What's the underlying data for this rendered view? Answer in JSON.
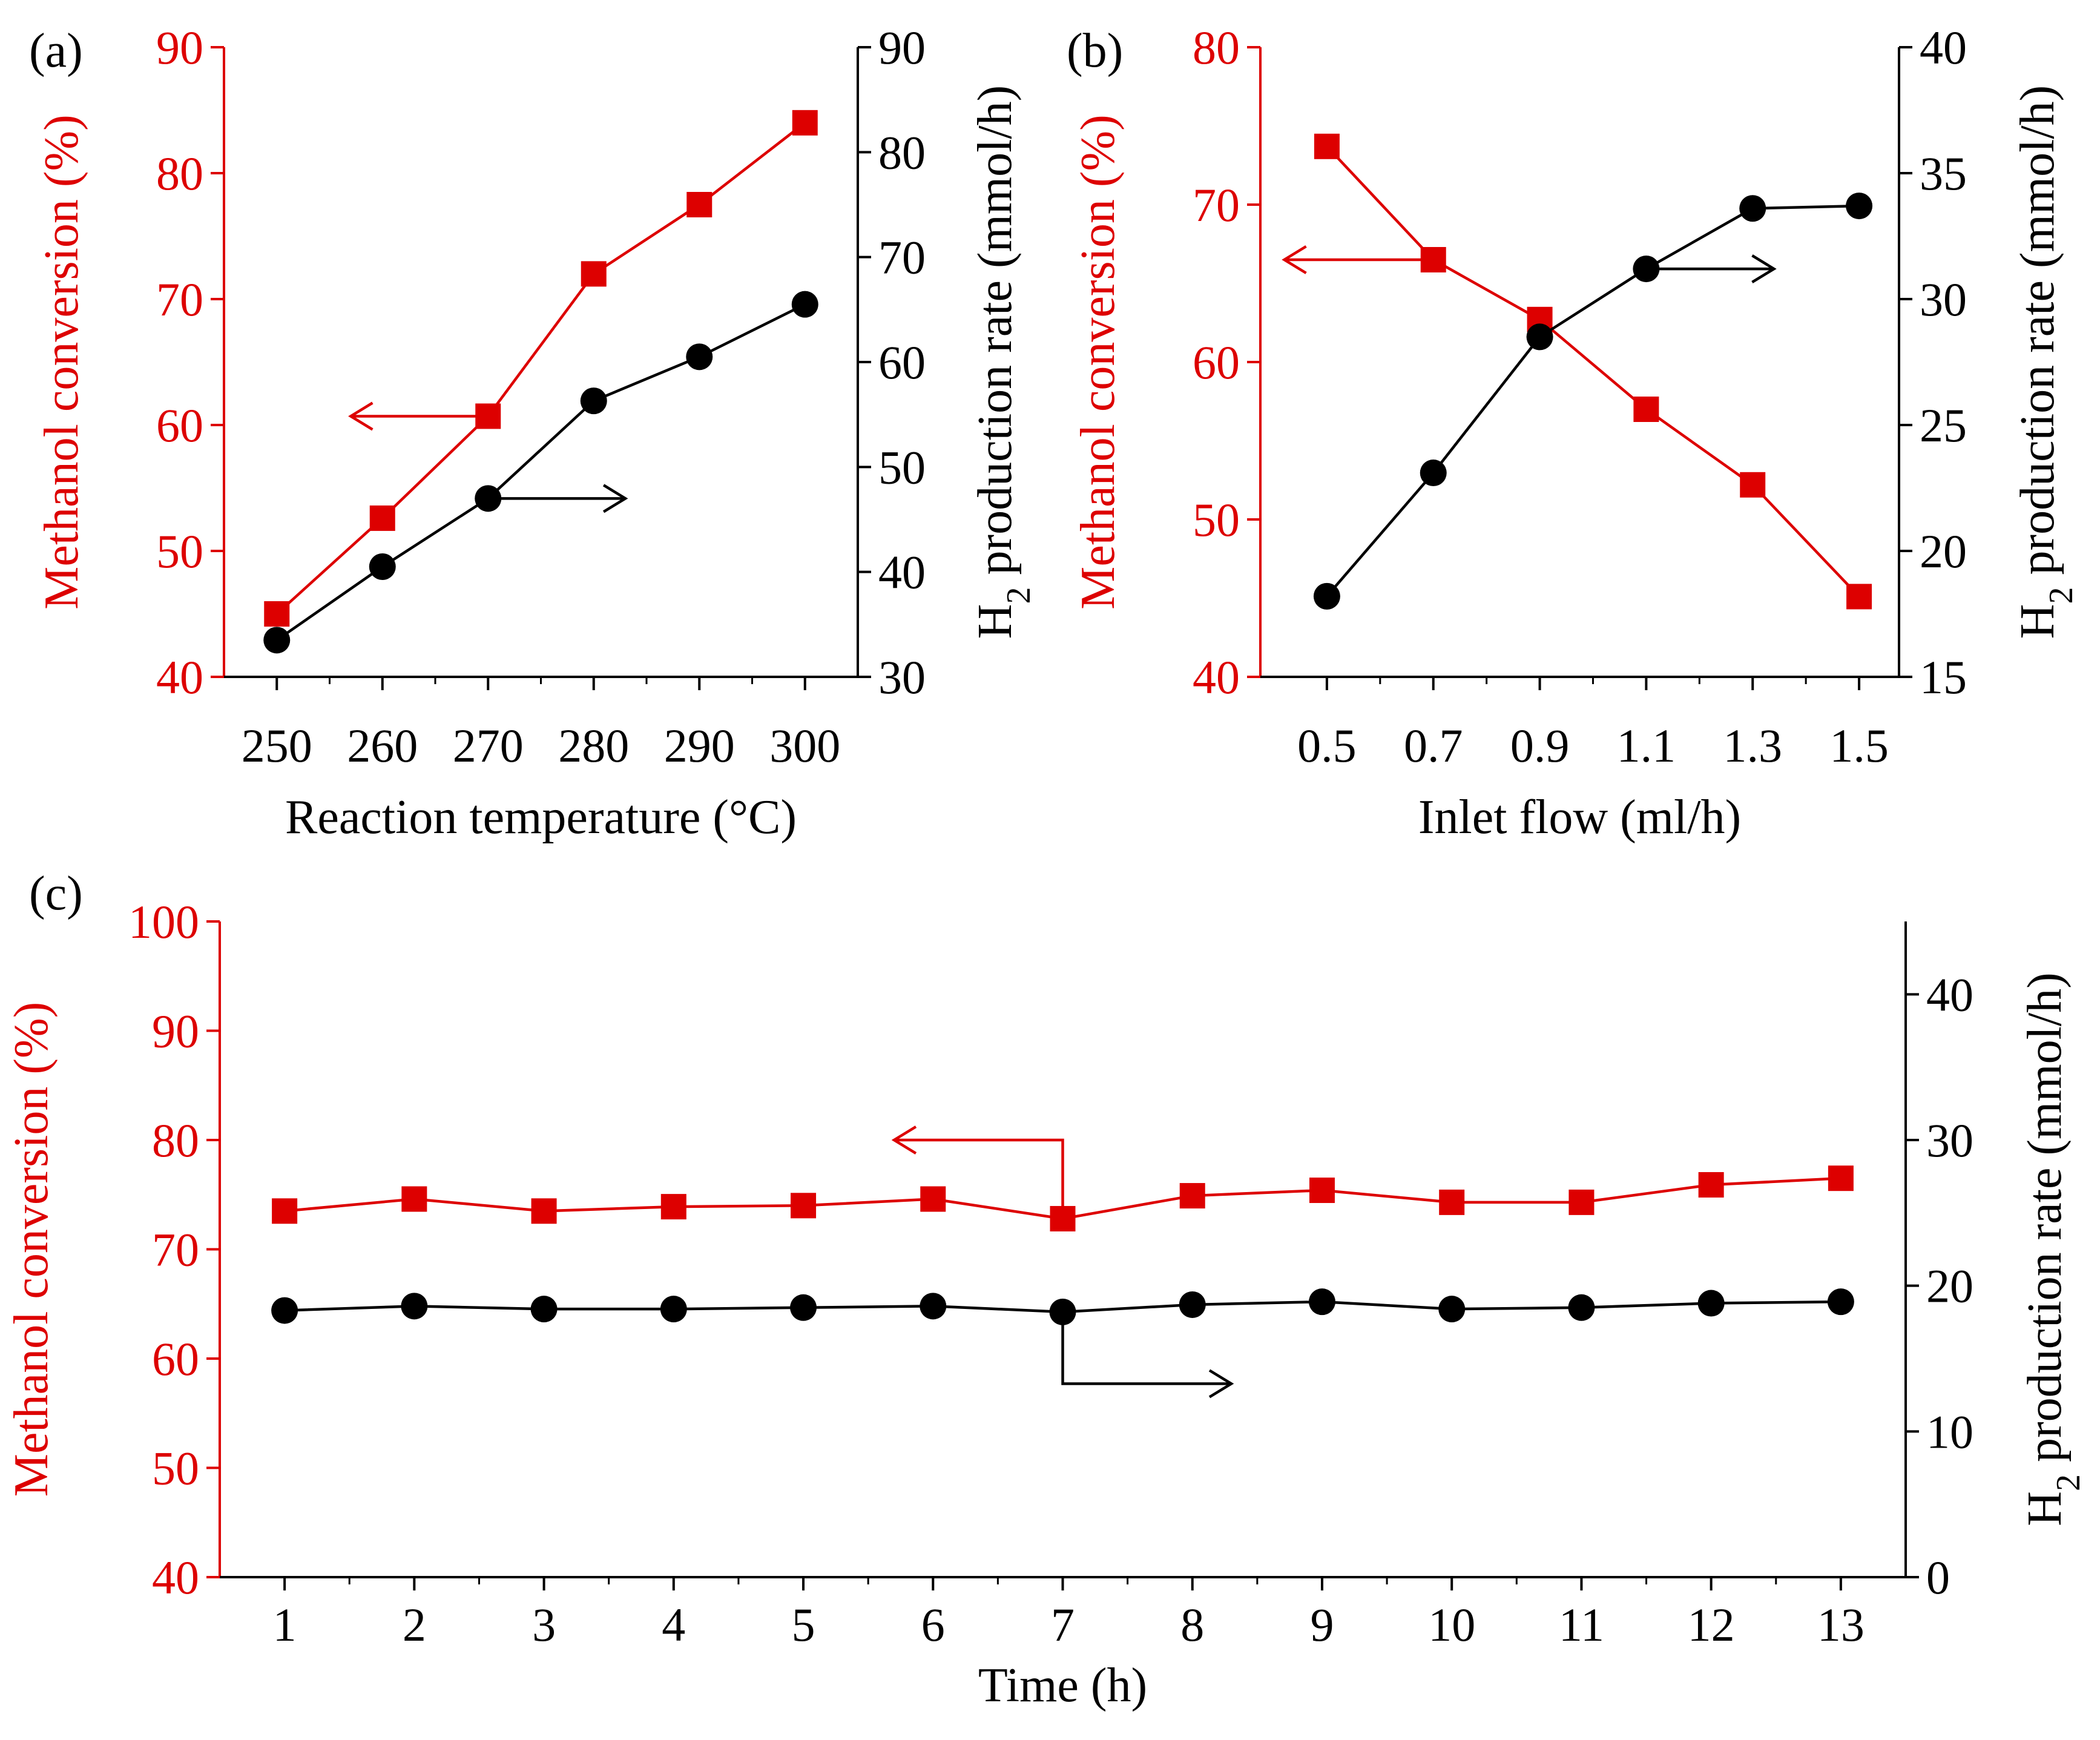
{
  "figure": {
    "colors": {
      "conversion": "#dd0000",
      "h2": "#000000",
      "axis_left": "#dd0000",
      "axis_right": "#000000"
    }
  },
  "chart_data": [
    {
      "panel": "(a)",
      "type": "line",
      "xlabel": "Reaction temperature (°C)",
      "ylabel_left": "Methanol conversion (%)",
      "ylabel_right": {
        "prefix": "H",
        "sub": "2",
        "suffix": " production rate (mmol/h)"
      },
      "x": [
        250,
        260,
        270,
        280,
        290,
        300
      ],
      "x_ticks": [
        "250",
        "260",
        "270",
        "280",
        "290",
        "300"
      ],
      "xlim": [
        245,
        305
      ],
      "y_left_ticks": [
        40,
        50,
        60,
        70,
        80,
        90
      ],
      "ylim_left": [
        40,
        90
      ],
      "y_right_ticks": [
        30,
        40,
        50,
        60,
        70,
        80,
        90
      ],
      "ylim_right": [
        30,
        90
      ],
      "series": [
        {
          "name": "Methanol conversion",
          "axis": "left",
          "marker": "square",
          "values": [
            45.0,
            52.6,
            60.7,
            72.0,
            77.5,
            84.0
          ]
        },
        {
          "name": "H2 production rate",
          "axis": "right",
          "marker": "circle",
          "values": [
            33.5,
            40.5,
            47.0,
            56.3,
            60.5,
            65.5
          ]
        }
      ],
      "annotations": [
        {
          "points_to": "left",
          "y": 60.7,
          "x_from": 270,
          "x_to": 257
        },
        {
          "points_to": "right",
          "y": 47.0,
          "x_from": 270,
          "x_to": 283
        }
      ]
    },
    {
      "panel": "(b)",
      "type": "line",
      "xlabel": "Inlet flow (ml/h)",
      "ylabel_left": "Methanol conversion (%)",
      "ylabel_right": {
        "prefix": "H",
        "sub": "2",
        "suffix": " production rate (mmol/h)"
      },
      "x": [
        0.5,
        0.7,
        0.9,
        1.1,
        1.3,
        1.5
      ],
      "x_ticks": [
        "0.5",
        "0.7",
        "0.9",
        "1.1",
        "1.3",
        "1.5"
      ],
      "xlim": [
        0.375,
        1.575
      ],
      "y_left_ticks": [
        40,
        50,
        60,
        70,
        80
      ],
      "ylim_left": [
        40,
        80
      ],
      "y_right_ticks": [
        15,
        20,
        25,
        30,
        35,
        40
      ],
      "ylim_right": [
        15,
        40
      ],
      "series": [
        {
          "name": "Methanol conversion",
          "axis": "left",
          "marker": "square",
          "values": [
            73.7,
            66.5,
            62.7,
            57.0,
            52.2,
            45.1
          ]
        },
        {
          "name": "H2 production rate",
          "axis": "right",
          "marker": "circle",
          "values": [
            18.2,
            23.1,
            28.5,
            31.2,
            33.6,
            33.7
          ]
        }
      ],
      "annotations": [
        {
          "points_to": "left",
          "y": 66.5,
          "x_from": 0.7,
          "x_to": 0.42
        },
        {
          "points_to": "right",
          "y": 31.2,
          "x_from": 1.1,
          "x_to": 1.34
        }
      ]
    },
    {
      "panel": "(c)",
      "type": "line",
      "xlabel": "Time (h)",
      "ylabel_left": "Methanol conversion (%)",
      "ylabel_right": {
        "prefix": "H",
        "sub": "2",
        "suffix": " production rate (mmol/h)"
      },
      "x": [
        1,
        2,
        3,
        4,
        5,
        6,
        7,
        8,
        9,
        10,
        11,
        12,
        13
      ],
      "x_ticks": [
        "1",
        "2",
        "3",
        "4",
        "5",
        "6",
        "7",
        "8",
        "9",
        "10",
        "11",
        "12",
        "13"
      ],
      "xlim": [
        0.5,
        13.5
      ],
      "y_left_ticks": [
        40,
        50,
        60,
        70,
        80,
        90,
        100
      ],
      "ylim_left": [
        40,
        100
      ],
      "y_right_ticks": [
        0,
        10,
        20,
        30,
        40
      ],
      "ylim_right": [
        0,
        45
      ],
      "series": [
        {
          "name": "Methanol conversion",
          "axis": "left",
          "marker": "square",
          "values": [
            73.5,
            74.6,
            73.5,
            73.9,
            74.0,
            74.6,
            72.8,
            74.9,
            75.4,
            74.3,
            74.3,
            75.9,
            76.5
          ]
        },
        {
          "name": "H2 production rate",
          "axis": "right",
          "marker": "circle",
          "values": [
            18.3,
            18.6,
            18.4,
            18.4,
            18.5,
            18.6,
            18.2,
            18.7,
            18.9,
            18.4,
            18.5,
            18.8,
            18.9
          ]
        }
      ],
      "annotations": [
        {
          "points_to": "left",
          "bend_y": 80,
          "from_x": 7,
          "from_y": 72.8,
          "to_x": 5.7
        },
        {
          "points_to": "right",
          "bend_y": 57.7,
          "from_x": 7,
          "from_y": 18.2,
          "to_x": 8.3
        }
      ]
    }
  ]
}
